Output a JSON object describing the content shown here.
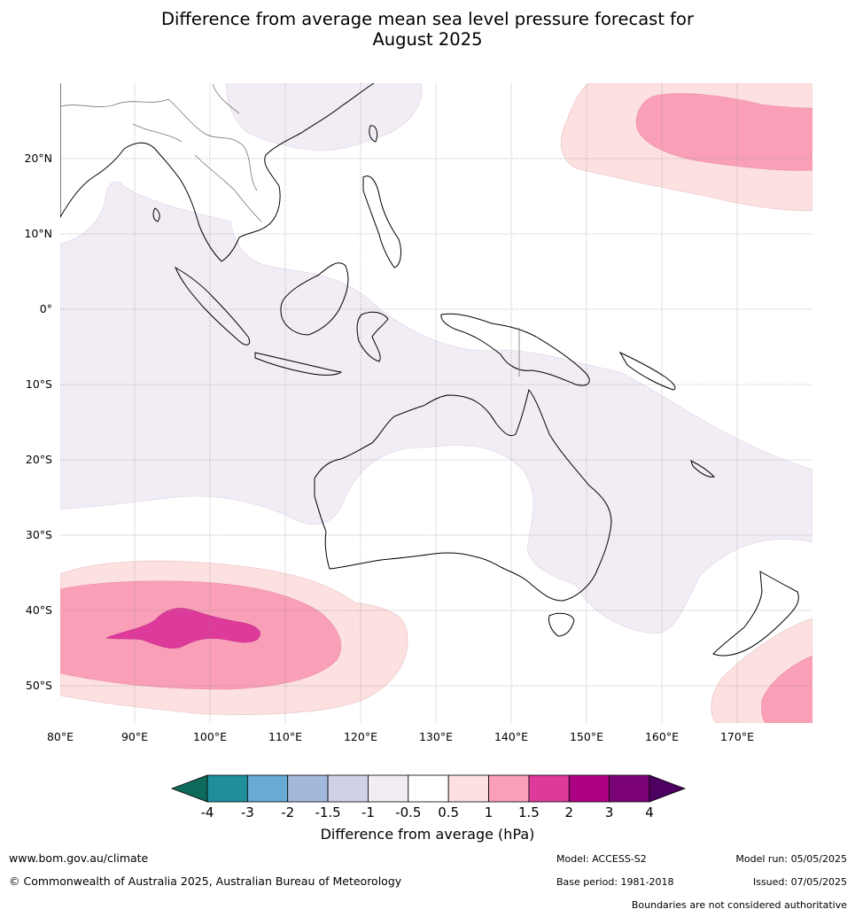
{
  "title_line1": "Difference from average mean sea level pressure forecast for",
  "title_line2": "August 2025",
  "axes": {
    "lon_labels": [
      "80°E",
      "90°E",
      "100°E",
      "110°E",
      "120°E",
      "130°E",
      "140°E",
      "150°E",
      "160°E",
      "170°E"
    ],
    "lat_labels": [
      "20°N",
      "10°N",
      "0°",
      "10°S",
      "20°S",
      "30°S",
      "40°S",
      "50°S"
    ]
  },
  "colorbar": {
    "title": "Difference from average (hPa)",
    "ticks": [
      "-4",
      "-3",
      "-2",
      "-1.5",
      "-1",
      "-0.5",
      "0.5",
      "1",
      "1.5",
      "2",
      "3",
      "4"
    ],
    "colors": [
      "#0e6b5c",
      "#1f8f9c",
      "#67aad3",
      "#a3b9db",
      "#d0d1e6",
      "#f2ecf5",
      "#ffffff",
      "#fde0e0",
      "#f9a0b8",
      "#de3a9c",
      "#ae0082",
      "#7a0177",
      "#4d005f"
    ]
  },
  "footer": {
    "website": "www.bom.gov.au/climate",
    "copyright": "© Commonwealth of Australia 2025, Australian Bureau of Meteorology",
    "model": "Model: ACCESS-S2",
    "base_period": "Base period: 1981-2018",
    "model_run": "Model run: 05/05/2025",
    "issued": "Issued: 07/05/2025",
    "disclaimer": "Boundaries are not considered authoritative"
  }
}
